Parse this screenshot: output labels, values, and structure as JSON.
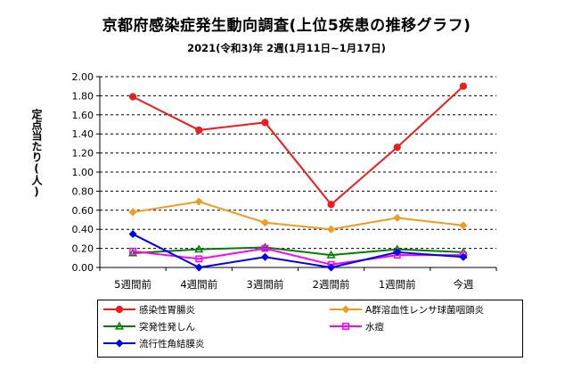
{
  "chart_data": {
    "type": "line",
    "title": "京都府感染症発生動向調査(上位5疾患の推移グラフ)",
    "subtitle": "2021(令和3)年 2週(1月11日~1月17日)",
    "ylabel": "定点当たり(人)",
    "xlabel": "",
    "categories": [
      "5週間前",
      "4週間前",
      "3週間前",
      "2週間前",
      "1週間前",
      "今週"
    ],
    "ylim": [
      0,
      2.0
    ],
    "yticks": [
      "0.00",
      "0.20",
      "0.40",
      "0.60",
      "0.80",
      "1.00",
      "1.20",
      "1.40",
      "1.60",
      "1.80",
      "2.00"
    ],
    "grid": "horizontal dashed",
    "legend_position": "bottom",
    "series": [
      {
        "name": "感染性胃腸炎",
        "values": [
          1.79,
          1.44,
          1.52,
          0.66,
          1.26,
          1.9
        ],
        "color": "#ee1c1c",
        "marker": "circle"
      },
      {
        "name": "A群溶血性レンサ球菌咽頭炎",
        "values": [
          0.58,
          0.69,
          0.47,
          0.4,
          0.52,
          0.44
        ],
        "color": "#f29a22",
        "marker": "diamond"
      },
      {
        "name": "突発性発しん",
        "values": [
          0.15,
          0.19,
          0.21,
          0.13,
          0.19,
          0.16
        ],
        "color": "#008000",
        "marker": "triangle"
      },
      {
        "name": "水痘",
        "values": [
          0.17,
          0.09,
          0.2,
          0.03,
          0.13,
          0.13
        ],
        "color": "#ff00ff",
        "marker": "square"
      },
      {
        "name": "流行性角結膜炎",
        "values": [
          0.35,
          0.0,
          0.11,
          0.0,
          0.16,
          0.11
        ],
        "color": "#0000ee",
        "marker": "diamond"
      }
    ]
  }
}
